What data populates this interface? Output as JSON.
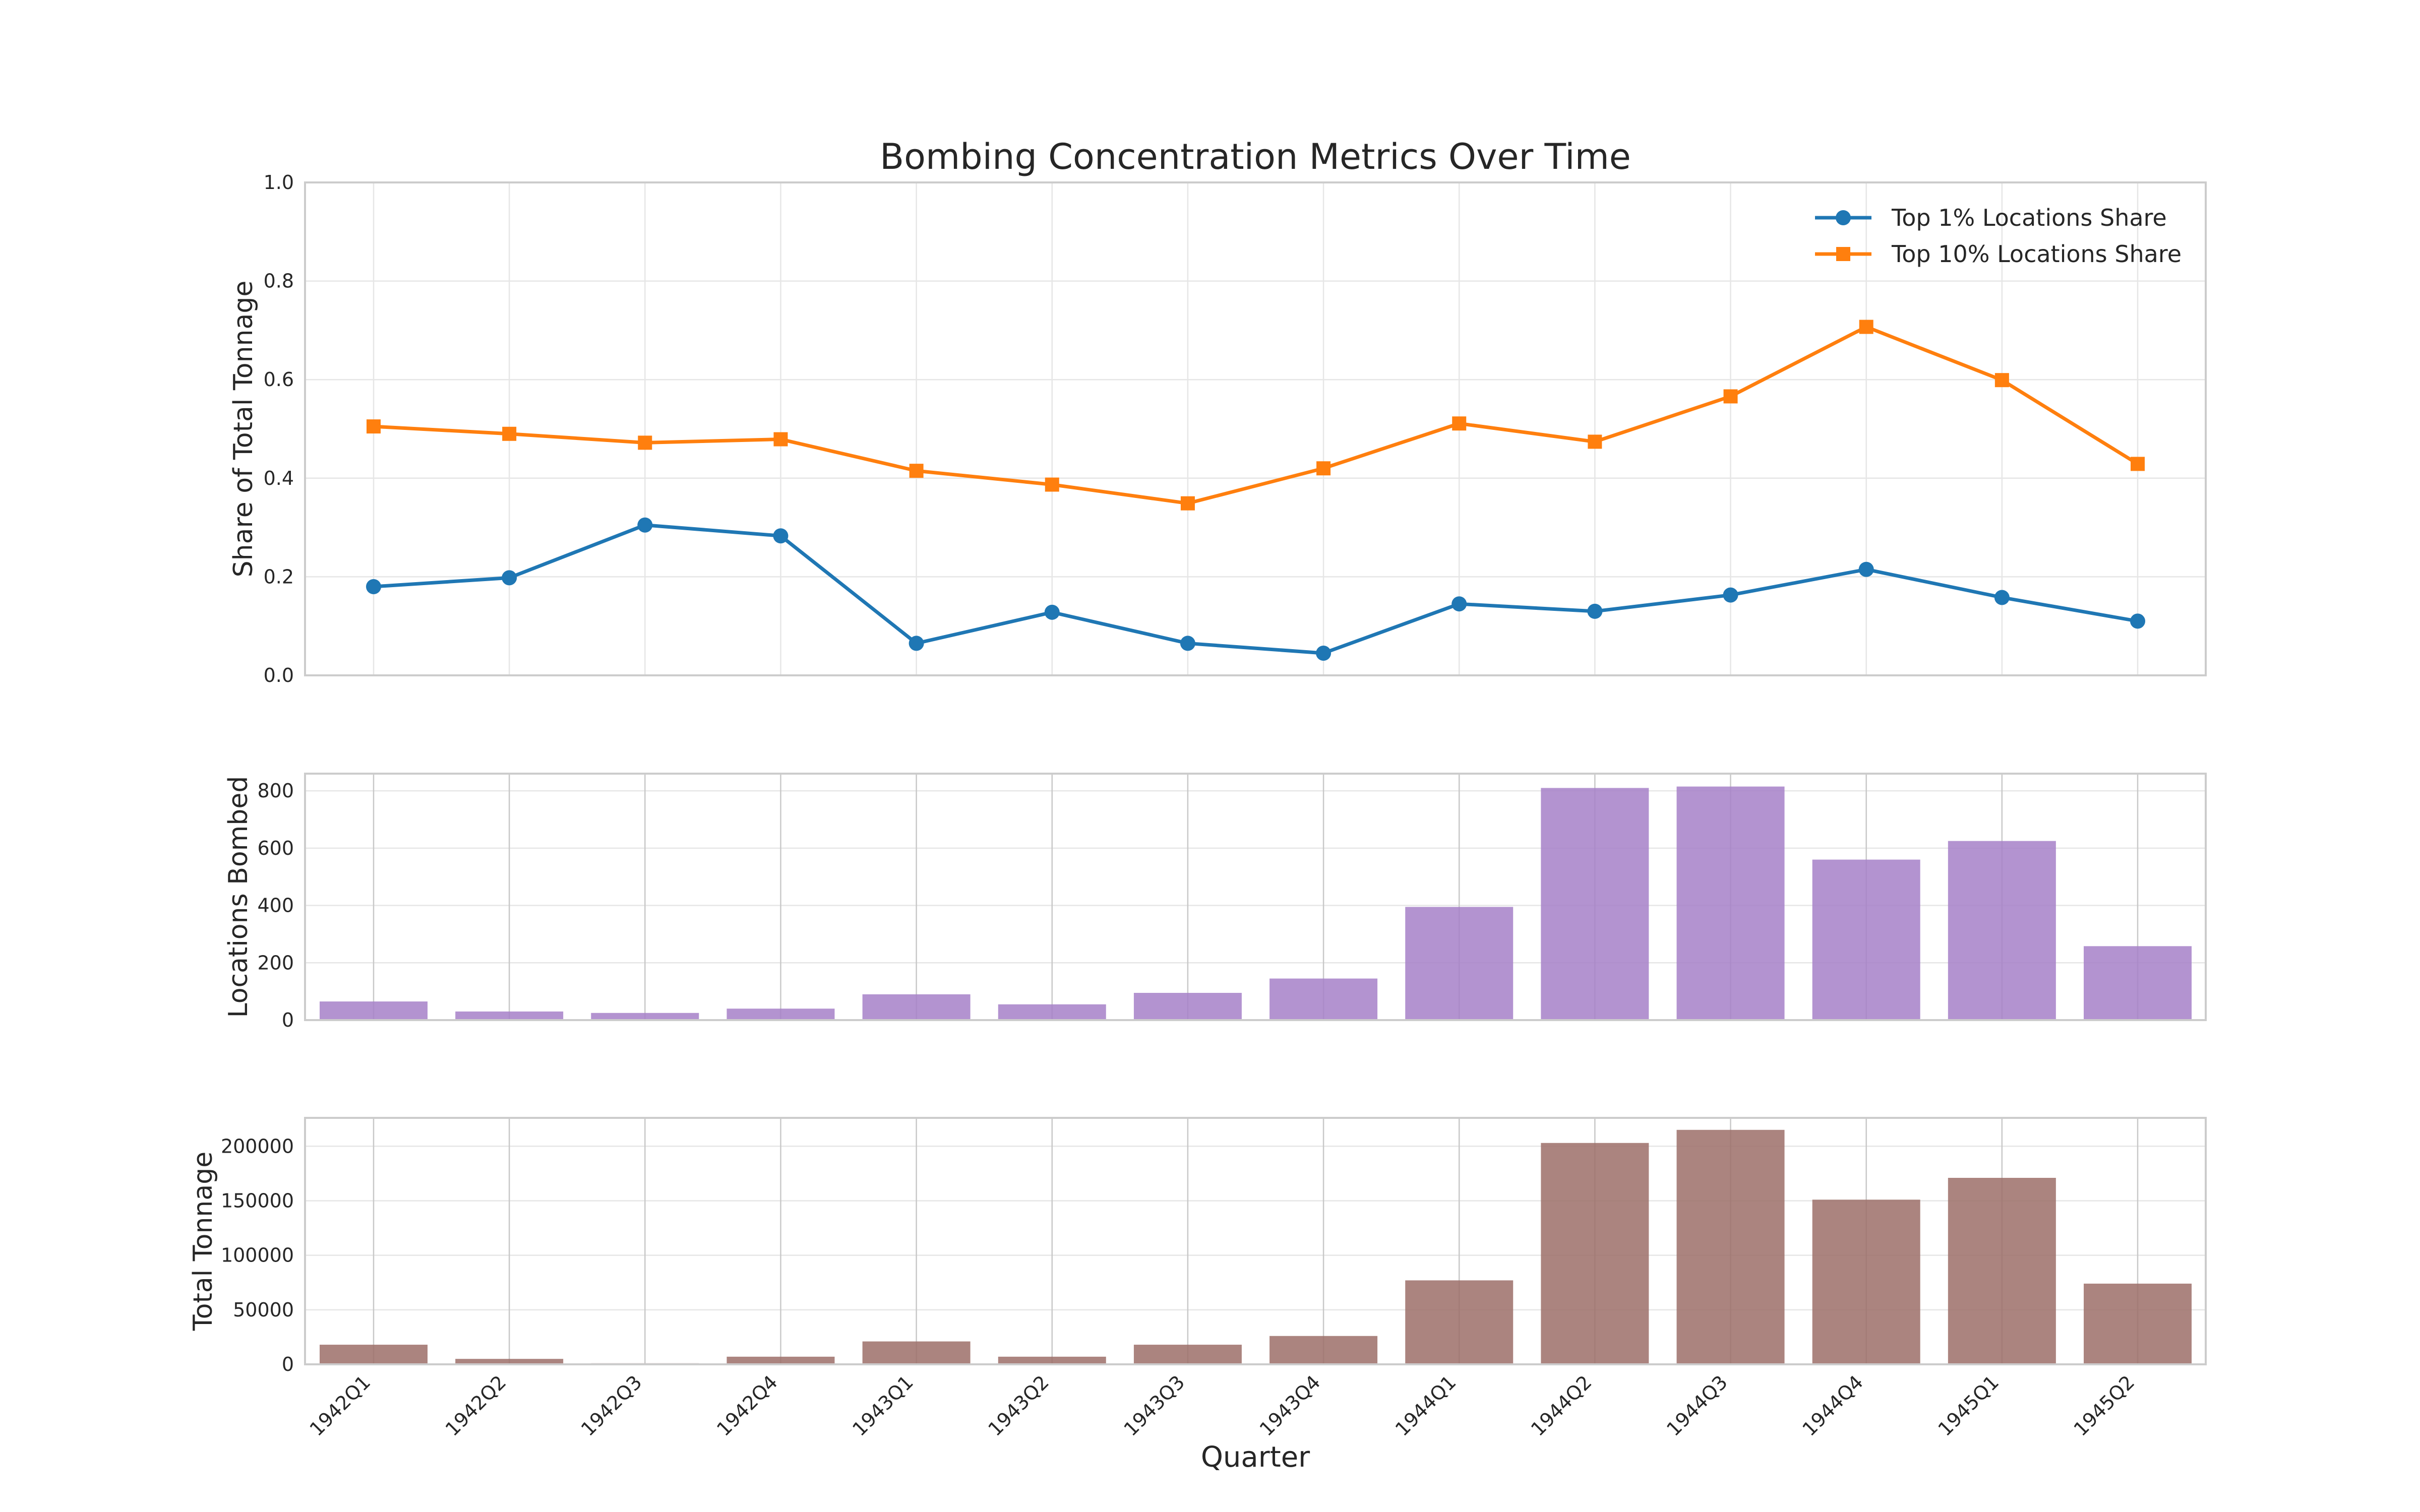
{
  "chart_data": [
    {
      "type": "line",
      "title": "Bombing Concentration Metrics Over Time",
      "xlabel": "",
      "ylabel": "Share of Total Tonnage",
      "ylim": [
        0,
        1.0
      ],
      "yticks": [
        "0.0",
        "0.2",
        "0.4",
        "0.6",
        "0.8",
        "1.0"
      ],
      "categories": [
        "1942Q1",
        "1942Q2",
        "1942Q3",
        "1942Q4",
        "1943Q1",
        "1943Q2",
        "1943Q3",
        "1943Q4",
        "1944Q1",
        "1944Q2",
        "1944Q3",
        "1944Q4",
        "1945Q1",
        "1945Q2"
      ],
      "legend_position": "top-right",
      "grid": true,
      "series": [
        {
          "name": "Top 1% Locations Share",
          "color": "#1f77b4",
          "marker": "circle",
          "values": [
            0.18,
            0.198,
            0.305,
            0.283,
            0.065,
            0.128,
            0.065,
            0.045,
            0.145,
            0.13,
            0.163,
            0.215,
            0.158,
            0.11
          ]
        },
        {
          "name": "Top 10% Locations Share",
          "color": "#ff7f0e",
          "marker": "square",
          "values": [
            0.505,
            0.49,
            0.472,
            0.479,
            0.415,
            0.387,
            0.349,
            0.42,
            0.511,
            0.474,
            0.566,
            0.707,
            0.599,
            0.429
          ]
        }
      ]
    },
    {
      "type": "bar",
      "ylabel": "Locations Bombed",
      "ylim": [
        0,
        860
      ],
      "yticks": [
        "0",
        "200",
        "400",
        "600",
        "800"
      ],
      "color": "#a680c8",
      "categories": [
        "1942Q1",
        "1942Q2",
        "1942Q3",
        "1942Q4",
        "1943Q1",
        "1943Q2",
        "1943Q3",
        "1943Q4",
        "1944Q1",
        "1944Q2",
        "1944Q3",
        "1944Q4",
        "1945Q1",
        "1945Q2"
      ],
      "values": [
        65,
        30,
        25,
        40,
        90,
        55,
        95,
        145,
        395,
        810,
        815,
        560,
        625,
        258
      ]
    },
    {
      "type": "bar",
      "xlabel": "Quarter",
      "ylabel": "Total Tonnage",
      "ylim": [
        0,
        226000
      ],
      "yticks": [
        "0",
        "50000",
        "100000",
        "150000",
        "200000"
      ],
      "color": "#9c6f68",
      "categories": [
        "1942Q1",
        "1942Q2",
        "1942Q3",
        "1942Q4",
        "1943Q1",
        "1943Q2",
        "1943Q3",
        "1943Q4",
        "1944Q1",
        "1944Q2",
        "1944Q3",
        "1944Q4",
        "1945Q1",
        "1945Q2"
      ],
      "values": [
        18000,
        5000,
        1000,
        7000,
        21000,
        7000,
        18000,
        26000,
        77000,
        203000,
        215000,
        151000,
        171000,
        74000
      ]
    }
  ]
}
